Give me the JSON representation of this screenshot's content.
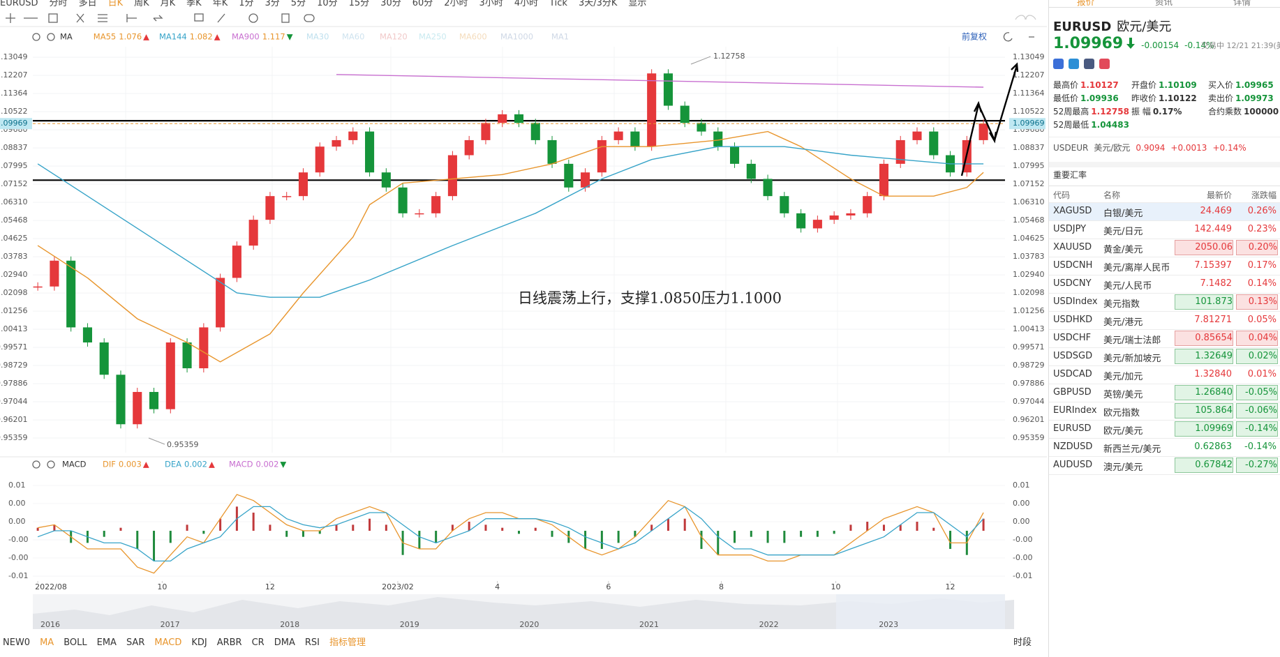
{
  "toolbar": {
    "symbol": "EURUSD",
    "periods": [
      "分时",
      "多日",
      "日K",
      "周K",
      "月K",
      "季K",
      "年K",
      "1分",
      "3分",
      "5分",
      "10分",
      "15分",
      "30分",
      "60分",
      "2小时",
      "3小时",
      "4小时",
      "Tick",
      "3天/3分K"
    ],
    "active_period": 2,
    "display": "显示"
  },
  "chart_data": [
    {
      "type": "candlestick",
      "indicator": "MA",
      "adjust_label": "前复权",
      "closes": [
        1.024,
        1.036,
        1.005,
        0.998,
        0.983,
        0.96,
        0.975,
        0.967,
        0.998,
        0.986,
        1.005,
        1.028,
        1.043,
        1.055,
        1.066,
        1.066,
        1.077,
        1.089,
        1.092,
        1.096,
        1.077,
        1.07,
        1.058,
        1.058,
        1.066,
        1.085,
        1.092,
        1.1,
        1.104,
        1.1,
        1.092,
        1.081,
        1.07,
        1.077,
        1.092,
        1.096,
        1.089,
        1.123,
        1.108,
        1.1,
        1.096,
        1.089,
        1.081,
        1.074,
        1.066,
        1.058,
        1.051,
        1.055,
        1.057,
        1.058,
        1.066,
        1.081,
        1.092,
        1.096,
        1.085,
        1.077,
        1.092,
        1.0997
      ],
      "up_color": "#e5383b",
      "down_color": "#15943a",
      "series": [
        {
          "name": "MA55",
          "value": 1.076,
          "trend": "▲",
          "color": "#e8952c",
          "x": [
            0,
            3,
            6,
            9,
            11,
            14,
            16,
            19,
            20,
            22,
            25,
            28,
            31,
            34,
            37,
            41,
            44,
            46,
            49,
            51,
            54,
            56,
            57
          ],
          "values": [
            1.043,
            1.028,
            1.009,
            0.998,
            0.989,
            1.002,
            1.021,
            1.047,
            1.062,
            1.072,
            1.074,
            1.076,
            1.081,
            1.089,
            1.089,
            1.092,
            1.096,
            1.089,
            1.074,
            1.066,
            1.066,
            1.07,
            1.077
          ]
        },
        {
          "name": "MA144",
          "value": 1.082,
          "trend": "▲",
          "color": "#36a3c8",
          "x": [
            0,
            6,
            12,
            14,
            17,
            20,
            25,
            30,
            34,
            37,
            41,
            45,
            49,
            52,
            55,
            57
          ],
          "values": [
            1.081,
            1.051,
            1.021,
            1.019,
            1.019,
            1.027,
            1.043,
            1.058,
            1.074,
            1.083,
            1.089,
            1.089,
            1.085,
            1.083,
            1.081,
            1.081
          ]
        },
        {
          "name": "MA900",
          "value": 1.117,
          "trend": "▼",
          "color": "#c86fd0",
          "x": [
            18,
            57
          ],
          "values": [
            1.1225,
            1.1166
          ]
        },
        {
          "name": "MA30",
          "color": "#bfe0ee"
        },
        {
          "name": "MA60",
          "color": "#cfe3ef"
        },
        {
          "name": "MA120",
          "color": "#f1c9c9"
        },
        {
          "name": "MA250",
          "color": "#c9eaf0"
        },
        {
          "name": "MA600",
          "color": "#f4dcbc"
        },
        {
          "name": "MA1000",
          "color": "#cfd8e6"
        },
        {
          "name": "MA1",
          "color": "#cfd8e6"
        }
      ],
      "current_price": 1.09969,
      "levels": [
        1.101,
        1.0734
      ],
      "high": 1.12758,
      "low": 0.95359,
      "note": "日线震荡上行，支撑1.0850压力1.1000",
      "xlim": [
        -0.3,
        58.3
      ],
      "ylim": [
        0.9468,
        1.1354
      ],
      "yticks": [
        1.13049,
        1.12207,
        1.11364,
        1.10522,
        {
          "value": 1.0968,
          "label": "1.09680"
        },
        1.08837,
        1.07995,
        1.07152,
        {
          "value": 1.0631,
          "label": "1.06310"
        },
        1.05468,
        1.04625,
        1.03783,
        {
          "value": 1.0294,
          "label": "1.02940"
        },
        1.02098,
        1.01256,
        1.00413,
        0.99571,
        0.98729,
        0.97886,
        0.97044,
        0.96201,
        0.95359
      ]
    },
    {
      "type": "macd",
      "indicator": "MACD",
      "series": [
        {
          "name": "DIF",
          "value": 0.003,
          "trend": "▲",
          "color": "#e8952c"
        },
        {
          "name": "DEA",
          "value": 0.002,
          "trend": "▲",
          "color": "#36a3c8"
        },
        {
          "name": "MACD",
          "value": 0.002,
          "trend": "▼",
          "color": "#c86fd0"
        }
      ],
      "histogram": [
        0.0005,
        0.001,
        -0.002,
        -0.002,
        -0.001,
        0.0005,
        -0.003,
        -0.005,
        -0.002,
        0.001,
        -0.0005,
        0.002,
        0.004,
        0.003,
        0.001,
        -0.001,
        -0.001,
        -0.0005,
        0.001,
        0.001,
        0.002,
        0.001,
        -0.004,
        -0.003,
        -0.002,
        0.001,
        0.0015,
        0.001,
        0.0005,
        -0.0005,
        0.0005,
        -0.001,
        -0.002,
        -0.003,
        -0.003,
        -0.002,
        -0.001,
        0.001,
        0.002,
        0.002,
        -0.003,
        -0.004,
        -0.002,
        -0.001,
        -0.002,
        -0.002,
        -0.001,
        -0.001,
        -0.0005,
        0.001,
        0.0015,
        0.001,
        0.001,
        0.0015,
        0.0005,
        -0.003,
        -0.004,
        0.002
      ],
      "dif": [
        0.0005,
        0.001,
        -0.001,
        -0.003,
        -0.003,
        -0.003,
        -0.006,
        -0.007,
        -0.004,
        -0.001,
        -0.002,
        0.002,
        0.006,
        0.005,
        0.003,
        0.001,
        0,
        0,
        0.002,
        0.003,
        0.004,
        0.003,
        -0.002,
        -0.003,
        -0.003,
        0,
        0.002,
        0.003,
        0.003,
        0.002,
        0.002,
        0.001,
        -0.001,
        -0.003,
        -0.004,
        -0.003,
        -0.001,
        0.002,
        0.005,
        0.004,
        -0.001,
        -0.004,
        -0.004,
        -0.004,
        -0.005,
        -0.005,
        -0.004,
        -0.004,
        -0.004,
        -0.002,
        0,
        0.002,
        0.003,
        0.004,
        0.003,
        -0.002,
        -0.002,
        0.003
      ],
      "dea": [
        -0.001,
        0,
        0,
        -0.001,
        -0.002,
        -0.002,
        -0.003,
        -0.005,
        -0.005,
        -0.003,
        -0.002,
        -0.001,
        0.002,
        0.004,
        0.004,
        0.002,
        0.001,
        0.0005,
        0.001,
        0.002,
        0.003,
        0.003,
        0.001,
        -0.001,
        -0.002,
        -0.001,
        0,
        0.002,
        0.002,
        0.002,
        0.002,
        0.0015,
        0.0005,
        -0.001,
        -0.002,
        -0.003,
        -0.002,
        0,
        0.002,
        0.004,
        0.002,
        -0.001,
        -0.003,
        -0.003,
        -0.004,
        -0.004,
        -0.004,
        -0.004,
        -0.004,
        -0.003,
        -0.002,
        -0.001,
        0.001,
        0.003,
        0.003,
        0.001,
        -0.001,
        0.002
      ],
      "up_color": "#c0393b",
      "down_color": "#1f8a3c",
      "xlim": [
        -0.3,
        58.3
      ],
      "ylim": [
        -0.0083,
        0.009
      ],
      "yticks": [
        {
          "value": 0.0075,
          "label": "0.01"
        },
        {
          "value": 0.0045,
          "label": "0.00"
        },
        {
          "value": 0.0015,
          "label": "0.00"
        },
        {
          "value": -0.0015,
          "label": "-0.00"
        },
        {
          "value": -0.0045,
          "label": "-0.00"
        },
        {
          "value": -0.0075,
          "label": "-0.01"
        }
      ],
      "xticks": [
        {
          "value": 0,
          "label": "2022/08"
        },
        {
          "value": 7.5,
          "label": "10"
        },
        {
          "value": 14,
          "label": "12"
        },
        {
          "value": 21.7,
          "label": "2023/02"
        },
        {
          "value": 27.7,
          "label": "4"
        },
        {
          "value": 34.4,
          "label": "6"
        },
        {
          "value": 41.2,
          "label": "8"
        },
        {
          "value": 48.1,
          "label": "10"
        },
        {
          "value": 55,
          "label": "12"
        }
      ]
    }
  ],
  "overview": {
    "years": [
      "2016",
      "2017",
      "2018",
      "2019",
      "2020",
      "2021",
      "2022",
      "2023"
    ]
  },
  "indicator_tabs": {
    "items": [
      "NEW0",
      "MA",
      "BOLL",
      "EMA",
      "SAR",
      "MACD",
      "KDJ",
      "ARBR",
      "CR",
      "DMA",
      "RSI",
      "指标管理"
    ],
    "active": [
      1,
      5,
      11
    ],
    "session": "时段"
  },
  "quote_panel": {
    "tabs": [
      "报价",
      "资讯",
      "详情"
    ],
    "symbol": "EURUSD",
    "name": "欧元/美元",
    "price": "1.09969",
    "change": "-0.00154",
    "change_pct": "-0.14%",
    "status": "交易中 12/21 21:39(美",
    "stats": [
      {
        "label": "最高价",
        "value": "1.10127",
        "tone": "up"
      },
      {
        "label": "开盘价",
        "value": "1.10109",
        "tone": "down"
      },
      {
        "label": "买入价",
        "value": "1.09965",
        "tone": "down"
      },
      {
        "label": "最低价",
        "value": "1.09936",
        "tone": "down"
      },
      {
        "label": "昨收价",
        "value": "1.10122",
        "tone": "flat"
      },
      {
        "label": "卖出价",
        "value": "1.09973",
        "tone": "down"
      },
      {
        "label": "52周最高",
        "value": "1.12758",
        "tone": "up"
      },
      {
        "label": "振 幅",
        "value": "0.17%",
        "tone": "flat"
      },
      {
        "label": "合约乘数",
        "value": "100000",
        "tone": "flat"
      },
      {
        "label": "52周最低",
        "value": "1.04483",
        "tone": "down"
      }
    ],
    "related": {
      "code": "USDEUR",
      "name": "美元/欧元",
      "price": "0.9094",
      "change": "+0.0013",
      "pct": "+0.14%"
    },
    "table": {
      "title": "重要汇率",
      "columns": [
        "代码",
        "名称",
        "最新价",
        "涨跌幅"
      ],
      "selected": 0,
      "rows": [
        {
          "code": "XAGUSD",
          "name": "白银/美元",
          "price": "24.469",
          "pct": "0.26%"
        },
        {
          "code": "USDJPY",
          "name": "美元/日元",
          "price": "142.449",
          "pct": "0.23%"
        },
        {
          "code": "XAUUSD",
          "name": "黄金/美元",
          "price": "2050.06",
          "pct": "0.20%",
          "box": [
            "up",
            "up"
          ]
        },
        {
          "code": "USDCNH",
          "name": "美元/离岸人民币",
          "price": "7.15397",
          "pct": "0.17%"
        },
        {
          "code": "USDCNY",
          "name": "美元/人民币",
          "price": "7.1482",
          "pct": "0.14%"
        },
        {
          "code": "USDIndex",
          "name": "美元指数",
          "price": "101.873",
          "pct": "0.13%",
          "box": [
            "down",
            "up"
          ]
        },
        {
          "code": "USDHKD",
          "name": "美元/港元",
          "price": "7.81271",
          "pct": "0.05%"
        },
        {
          "code": "USDCHF",
          "name": "美元/瑞士法郎",
          "price": "0.85654",
          "pct": "0.04%",
          "box": [
            "up",
            "up"
          ]
        },
        {
          "code": "USDSGD",
          "name": "美元/新加坡元",
          "price": "1.32649",
          "pct": "0.02%",
          "box": [
            "down",
            "down"
          ]
        },
        {
          "code": "USDCAD",
          "name": "美元/加元",
          "price": "1.32840",
          "pct": "0.01%"
        },
        {
          "code": "GBPUSD",
          "name": "英镑/美元",
          "price": "1.26840",
          "pct": "-0.05%",
          "box": [
            "up",
            "up"
          ]
        },
        {
          "code": "EURIndex",
          "name": "欧元指数",
          "price": "105.864",
          "pct": "-0.06%",
          "box": [
            "up",
            "up"
          ]
        },
        {
          "code": "EURUSD",
          "name": "欧元/美元",
          "price": "1.09969",
          "pct": "-0.14%",
          "box": [
            "up",
            "up"
          ]
        },
        {
          "code": "NZDUSD",
          "name": "新西兰元/美元",
          "price": "0.62863",
          "pct": "-0.14%"
        },
        {
          "code": "AUDUSD",
          "name": "澳元/美元",
          "price": "0.67842",
          "pct": "-0.27%",
          "box": [
            "down",
            "down"
          ]
        }
      ]
    }
  }
}
